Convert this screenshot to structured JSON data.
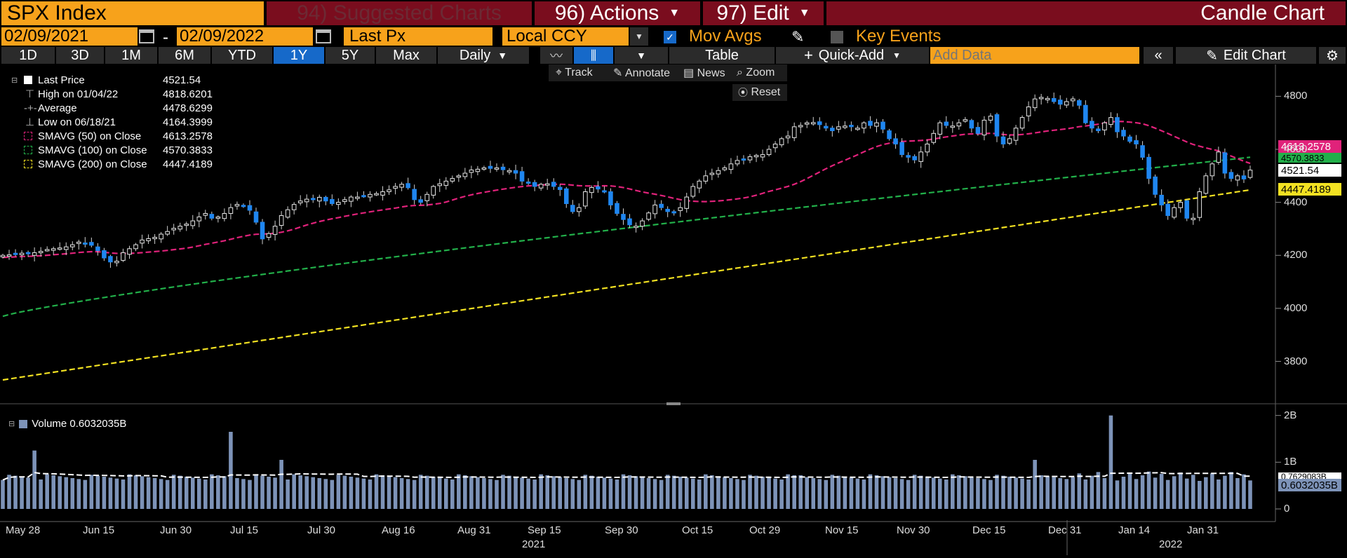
{
  "header": {
    "ticker": "SPX Index",
    "suggested": "94) Suggested Charts",
    "actions": "96) Actions",
    "edit": "97) Edit",
    "chart_type": "Candle Chart"
  },
  "controls": {
    "start_date": "02/09/2021",
    "dash": "-",
    "end_date": "02/09/2022",
    "field": "Last Px",
    "currency": "Local CCY",
    "mov_avgs": "Mov Avgs",
    "key_events": "Key Events"
  },
  "toolbar": {
    "periods": [
      "1D",
      "3D",
      "1M",
      "6M",
      "YTD",
      "1Y",
      "5Y",
      "Max"
    ],
    "selected_period": "1Y",
    "frequency": "Daily",
    "table": "Table",
    "quick_add": "Quick-Add",
    "add_data_placeholder": "Add Data",
    "edit_chart": "Edit Chart"
  },
  "tools": {
    "track": "Track",
    "annotate": "Annotate",
    "news": "News",
    "zoom": "Zoom",
    "reset": "Reset"
  },
  "legend": [
    {
      "name": "Last Price",
      "value": "4521.54",
      "color": "#ffffff"
    },
    {
      "name": "High on 01/04/22",
      "value": "4818.6201",
      "color": "#bbbbbb"
    },
    {
      "name": "Average",
      "value": "4478.6299",
      "color": "#bbbbbb"
    },
    {
      "name": "Low on 06/18/21",
      "value": "4164.3999",
      "color": "#bbbbbb"
    },
    {
      "name": "SMAVG (50)  on Close",
      "value": "4613.2578",
      "color": "#e0227a"
    },
    {
      "name": "SMAVG (100)  on Close",
      "value": "4570.3833",
      "color": "#22b04a"
    },
    {
      "name": "SMAVG (200)  on Close",
      "value": "4447.4189",
      "color": "#f2e122"
    }
  ],
  "price_tags": {
    "sma50": "4613.2578",
    "sma100": "4570.3833",
    "last": "4521.54",
    "sma200": "4447.4189",
    "vol_ma": "0.7629083B",
    "vol_last": "0.6032035B"
  },
  "volume_legend": "Volume 0.6032035B",
  "chart_data": {
    "type": "candlestick",
    "title": "SPX Index",
    "y_ticks": [
      3800,
      4000,
      4200,
      4400,
      4600,
      4800
    ],
    "ylim": [
      3640,
      4920
    ],
    "volume_ticks": [
      "2B",
      "1B",
      "0"
    ],
    "volume_ylim": [
      0,
      2.1
    ],
    "x_ticks": [
      "May 28",
      "Jun 15",
      "Jun 30",
      "Jul 15",
      "Jul 30",
      "Aug 16",
      "Aug 31",
      "Sep 15",
      "Sep 30",
      "Oct 15",
      "Oct 29",
      "Nov 15",
      "Nov 30",
      "Dec 15",
      "Dec 31",
      "Jan 14",
      "Jan 31"
    ],
    "x_years": [
      "2021",
      "2022"
    ],
    "closes": [
      4200,
      4202,
      4205,
      4208,
      4206,
      4210,
      4215,
      4222,
      4225,
      4228,
      4232,
      4240,
      4250,
      4246,
      4238,
      4218,
      4190,
      4175,
      4178,
      4210,
      4225,
      4240,
      4258,
      4263,
      4268,
      4280,
      4290,
      4302,
      4310,
      4318,
      4330,
      4345,
      4358,
      4340,
      4345,
      4358,
      4380,
      4392,
      4385,
      4370,
      4325,
      4262,
      4282,
      4310,
      4350,
      4372,
      4392,
      4405,
      4412,
      4411,
      4419,
      4405,
      4395,
      4400,
      4410,
      4420,
      4420,
      4423,
      4430,
      4433,
      4440,
      4447,
      4460,
      4468,
      4455,
      4410,
      4400,
      4430,
      4460,
      4470,
      4480,
      4490,
      4500,
      4510,
      4522,
      4525,
      4530,
      4528,
      4530,
      4523,
      4520,
      4510,
      4480,
      4472,
      4460,
      4468,
      4470,
      4460,
      4448,
      4395,
      4365,
      4380,
      4440,
      4456,
      4450,
      4440,
      4390,
      4358,
      4335,
      4315,
      4310,
      4330,
      4360,
      4390,
      4380,
      4365,
      4363,
      4380,
      4420,
      4460,
      4480,
      4500,
      4510,
      4520,
      4530,
      4545,
      4558,
      4563,
      4572,
      4577,
      4580,
      4600,
      4620,
      4640,
      4650,
      4685,
      4690,
      4700,
      4701,
      4693,
      4680,
      4670,
      4685,
      4688,
      4685,
      4680,
      4700,
      4690,
      4700,
      4676,
      4640,
      4620,
      4580,
      4570,
      4560,
      4590,
      4620,
      4660,
      4700,
      4690,
      4688,
      4700,
      4712,
      4680,
      4660,
      4710,
      4725,
      4650,
      4620,
      4640,
      4680,
      4720,
      4760,
      4790,
      4796,
      4792,
      4780,
      4770,
      4780,
      4790,
      4766,
      4700,
      4680,
      4670,
      4700,
      4720,
      4666,
      4650,
      4630,
      4620,
      4570,
      4490,
      4430,
      4390,
      4350,
      4380,
      4400,
      4340,
      4340,
      4440,
      4500,
      4545,
      4590,
      4510,
      4490,
      4500,
      4488,
      4521.54
    ]
  }
}
